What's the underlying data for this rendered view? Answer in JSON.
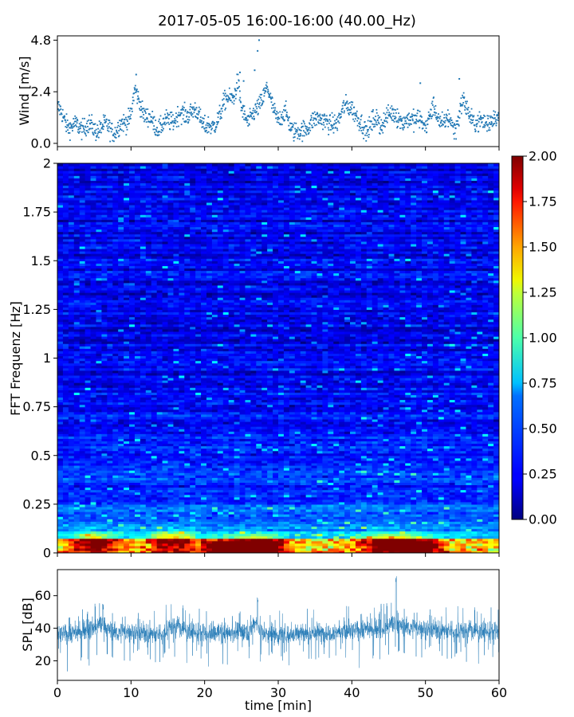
{
  "title": "2017-05-05 16:00-16:00 (40.00_Hz)",
  "chart_data": [
    {
      "name": "wind",
      "type": "scatter",
      "ylabel": "Wind [m/s]",
      "xlim": [
        0,
        60
      ],
      "ylim": [
        -0.15,
        5.0
      ],
      "yticks": [
        0.0,
        2.4,
        4.8
      ],
      "yticklabels": [
        "0.0",
        "2.4",
        "4.8"
      ],
      "color": "#1f77b4",
      "trend": [
        [
          0,
          1.7
        ],
        [
          1,
          1.0
        ],
        [
          2,
          0.8
        ],
        [
          3,
          0.7
        ],
        [
          4,
          0.9
        ],
        [
          5,
          0.6
        ],
        [
          6,
          0.8
        ],
        [
          7,
          0.7
        ],
        [
          8,
          0.6
        ],
        [
          9,
          0.9
        ],
        [
          10,
          1.4
        ],
        [
          10.5,
          2.4
        ],
        [
          11,
          2.0
        ],
        [
          12,
          1.3
        ],
        [
          13,
          0.9
        ],
        [
          14,
          0.8
        ],
        [
          15,
          1.0
        ],
        [
          16,
          1.2
        ],
        [
          17,
          1.3
        ],
        [
          18,
          1.5
        ],
        [
          19,
          1.4
        ],
        [
          20,
          0.9
        ],
        [
          21,
          0.6
        ],
        [
          22,
          1.4
        ],
        [
          23,
          2.0
        ],
        [
          24,
          2.3
        ],
        [
          24.5,
          2.8
        ],
        [
          25,
          1.5
        ],
        [
          26,
          1.1
        ],
        [
          27,
          1.4
        ],
        [
          28,
          2.3
        ],
        [
          28.5,
          2.6
        ],
        [
          29,
          1.8
        ],
        [
          30,
          1.2
        ],
        [
          31,
          1.3
        ],
        [
          32,
          0.7
        ],
        [
          33,
          0.4
        ],
        [
          34,
          0.9
        ],
        [
          35,
          1.0
        ],
        [
          36,
          1.3
        ],
        [
          37,
          0.7
        ],
        [
          38,
          1.1
        ],
        [
          39,
          1.6
        ],
        [
          40,
          1.8
        ],
        [
          41,
          0.9
        ],
        [
          42,
          0.7
        ],
        [
          43,
          1.0
        ],
        [
          44,
          1.0
        ],
        [
          45,
          1.2
        ],
        [
          46,
          1.5
        ],
        [
          47,
          0.8
        ],
        [
          48,
          1.3
        ],
        [
          49,
          1.0
        ],
        [
          50,
          0.9
        ],
        [
          51,
          1.6
        ],
        [
          52,
          1.0
        ],
        [
          53,
          1.1
        ],
        [
          54,
          0.7
        ],
        [
          55,
          1.9
        ],
        [
          56,
          1.4
        ],
        [
          57,
          0.8
        ],
        [
          58,
          1.1
        ],
        [
          59,
          1.0
        ],
        [
          60,
          1.3
        ]
      ],
      "peaks": [
        [
          10.7,
          3.2
        ],
        [
          24.8,
          3.3
        ],
        [
          25.3,
          2.9
        ],
        [
          26.8,
          3.4
        ],
        [
          27.2,
          4.3
        ],
        [
          27.4,
          4.8
        ],
        [
          49.3,
          2.8
        ],
        [
          54.6,
          3.0
        ]
      ]
    },
    {
      "name": "spectrogram",
      "type": "heatmap",
      "ylabel": "FFT Frequenz [Hz]",
      "xlim": [
        0,
        60
      ],
      "ylim": [
        0,
        2
      ],
      "yticks": [
        0,
        0.25,
        0.5,
        0.75,
        1,
        1.25,
        1.5,
        1.75,
        2
      ],
      "yticklabels": [
        "0",
        "0.25",
        "0.5",
        "0.75",
        "1",
        "1.25",
        "1.5",
        "1.75",
        "2"
      ],
      "colormap": "jet",
      "colorbar": {
        "vmin": 0,
        "vmax": 2,
        "ticks": [
          0,
          0.25,
          0.5,
          0.75,
          1.0,
          1.25,
          1.5,
          1.75,
          2.0
        ],
        "ticklabels": [
          "0.00",
          "0.25",
          "0.50",
          "0.75",
          "1.00",
          "1.25",
          "1.50",
          "1.75",
          "2.00"
        ]
      },
      "hot_spots": [
        [
          27.5,
          0.03,
          1.95
        ],
        [
          48.5,
          0.03,
          1.9
        ],
        [
          15.5,
          0.06,
          1.4
        ],
        [
          23,
          0.02,
          1.6
        ],
        [
          44,
          0.05,
          1.3
        ],
        [
          5,
          0.05,
          1.4
        ]
      ]
    },
    {
      "name": "spl",
      "type": "line",
      "ylabel": "SPL [dB]",
      "xlabel": "time [min]",
      "xlim": [
        0,
        60
      ],
      "ylim": [
        8,
        76
      ],
      "yticks": [
        20,
        40,
        60
      ],
      "yticklabels": [
        "20",
        "40",
        "60"
      ],
      "xticks": [
        0,
        10,
        20,
        30,
        40,
        50,
        60
      ],
      "xticklabels": [
        "0",
        "10",
        "20",
        "30",
        "40",
        "50",
        "60"
      ],
      "color": "#1f77b4",
      "trend": [
        [
          0,
          36
        ],
        [
          3,
          38
        ],
        [
          5,
          40
        ],
        [
          6,
          42
        ],
        [
          8,
          37
        ],
        [
          10,
          38
        ],
        [
          12,
          37
        ],
        [
          14,
          36
        ],
        [
          15,
          40
        ],
        [
          16,
          42
        ],
        [
          18,
          38
        ],
        [
          20,
          36
        ],
        [
          22,
          37
        ],
        [
          25,
          38
        ],
        [
          26,
          39
        ],
        [
          27,
          44
        ],
        [
          28,
          36
        ],
        [
          30,
          36
        ],
        [
          33,
          37
        ],
        [
          36,
          37
        ],
        [
          38,
          38
        ],
        [
          40,
          38
        ],
        [
          42,
          40
        ],
        [
          44,
          39
        ],
        [
          45,
          41
        ],
        [
          46,
          43
        ],
        [
          47,
          41
        ],
        [
          48,
          40
        ],
        [
          50,
          40
        ],
        [
          52,
          39
        ],
        [
          54,
          38
        ],
        [
          56,
          39
        ],
        [
          58,
          38
        ],
        [
          60,
          37
        ]
      ],
      "spikes": [
        [
          27.2,
          60
        ],
        [
          46.0,
          72
        ],
        [
          44.0,
          55
        ],
        [
          6.2,
          55
        ]
      ]
    }
  ]
}
